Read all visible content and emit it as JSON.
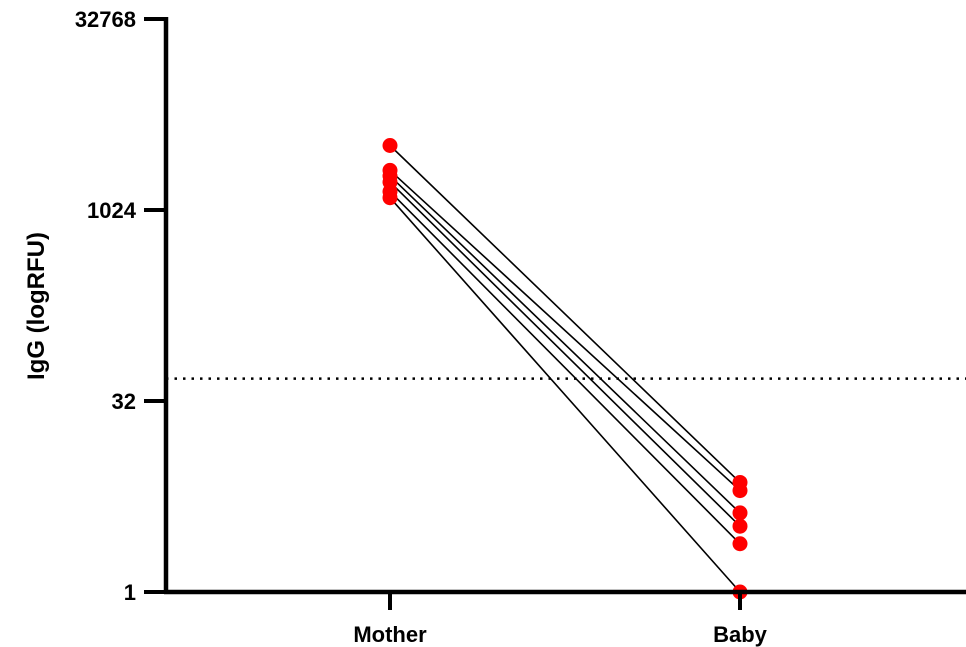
{
  "chart_data": {
    "type": "scatter",
    "title": "",
    "xlabel": "",
    "ylabel": "IgG (logRFU)",
    "categories": [
      "Mother",
      "Baby"
    ],
    "y_scale": "log2",
    "ylim": [
      1,
      32768
    ],
    "y_ticks": [
      {
        "value": 1,
        "label": "1"
      },
      {
        "value": 32,
        "label": "32"
      },
      {
        "value": 1024,
        "label": "1024"
      },
      {
        "value": 32768,
        "label": "32768"
      }
    ],
    "threshold": 48,
    "grid": false,
    "marker_color": "#ff0000",
    "line_color": "#000000",
    "pairs": [
      {
        "mother": 3300,
        "baby": 7.3
      },
      {
        "mother": 2100,
        "baby": 6.3
      },
      {
        "mother": 1900,
        "baby": 4.2
      },
      {
        "mother": 1700,
        "baby": 3.3
      },
      {
        "mother": 1430,
        "baby": 2.4
      },
      {
        "mother": 1280,
        "baby": 1.0
      }
    ]
  }
}
